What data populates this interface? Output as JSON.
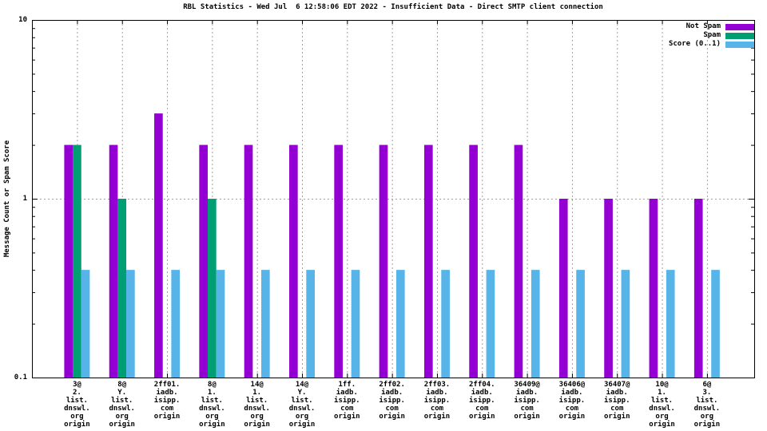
{
  "title": "RBL Statistics - Wed Jul  6 12:58:06 EDT 2022 - Insufficient Data - Direct SMTP client connection",
  "ylabel": "Message Count or Spam Score",
  "chart_data": {
    "type": "bar",
    "y_scale": "log10",
    "ylim": [
      0.1,
      10
    ],
    "grid": true,
    "grid_color": "#a0a0a0",
    "axis_color": "#000000",
    "legend_position": "top-right-inside",
    "yticks": [
      {
        "label": "10",
        "value": 10
      },
      {
        "label": "1",
        "value": 1
      },
      {
        "label": "0.1",
        "value": 0.1
      }
    ],
    "categories": [
      [
        "3@",
        "2.",
        "list.",
        "dnswl.",
        "org",
        "origin"
      ],
      [
        "8@",
        "Y.",
        "list.",
        "dnswl.",
        "org",
        "origin"
      ],
      [
        "2ff01.",
        "iadb.",
        "isipp.",
        "com",
        "origin"
      ],
      [
        "8@",
        "1.",
        "list.",
        "dnswl.",
        "org",
        "origin"
      ],
      [
        "14@",
        "1.",
        "list.",
        "dnswl.",
        "org",
        "origin"
      ],
      [
        "14@",
        "Y.",
        "list.",
        "dnswl.",
        "org",
        "origin"
      ],
      [
        "1ff.",
        "iadb.",
        "isipp.",
        "com",
        "origin"
      ],
      [
        "2ff02.",
        "iadb.",
        "isipp.",
        "com",
        "origin"
      ],
      [
        "2ff03.",
        "iadb.",
        "isipp.",
        "com",
        "origin"
      ],
      [
        "2ff04.",
        "iadb.",
        "isipp.",
        "com",
        "origin"
      ],
      [
        "36409@",
        "iadb.",
        "isipp.",
        "com",
        "origin"
      ],
      [
        "36406@",
        "iadb.",
        "isipp.",
        "com",
        "origin"
      ],
      [
        "36407@",
        "iadb.",
        "isipp.",
        "com",
        "origin"
      ],
      [
        "10@",
        "1.",
        "list.",
        "dnswl.",
        "org",
        "origin"
      ],
      [
        "6@",
        "3.",
        "list.",
        "dnswl.",
        "org",
        "origin"
      ]
    ],
    "series": [
      {
        "name": "Not Spam",
        "color": "#9400d3",
        "values": [
          2,
          2,
          3,
          2,
          2,
          2,
          2,
          2,
          2,
          2,
          2,
          1,
          1,
          1,
          1
        ]
      },
      {
        "name": "Spam",
        "color": "#009e73",
        "values": [
          2,
          1,
          null,
          1,
          null,
          null,
          null,
          null,
          null,
          null,
          null,
          null,
          null,
          null,
          null
        ]
      },
      {
        "name": "Score (0..1)",
        "color": "#56b4e9",
        "values": [
          0.4,
          0.4,
          0.4,
          0.4,
          0.4,
          0.4,
          0.4,
          0.4,
          0.4,
          0.4,
          0.4,
          0.4,
          0.4,
          0.4,
          0.4
        ]
      }
    ]
  }
}
